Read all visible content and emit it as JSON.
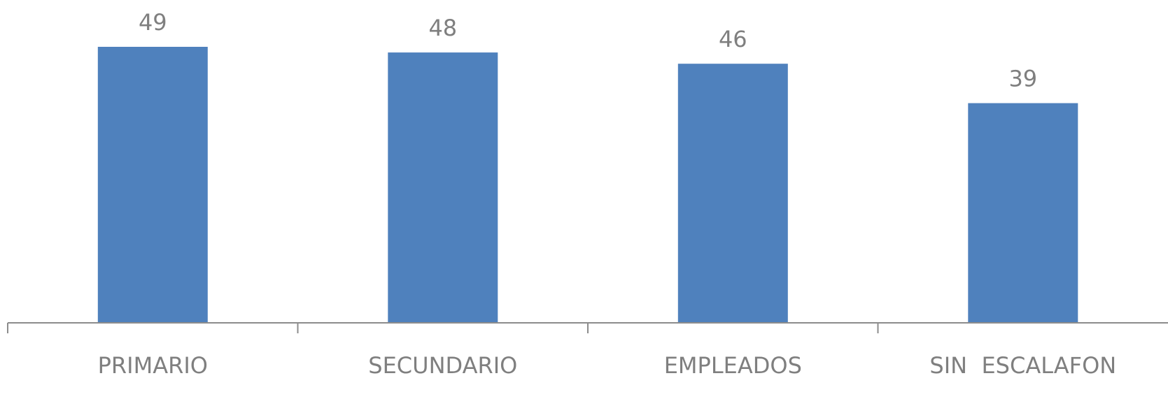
{
  "chart_data": {
    "type": "bar",
    "categories": [
      "PRIMARIO",
      "SECUNDARIO",
      "EMPLEADOS",
      "SIN  ESCALAFON"
    ],
    "values": [
      49,
      48,
      46,
      39
    ],
    "data_labels": [
      "49",
      "48",
      "46",
      "39"
    ],
    "title": "",
    "xlabel": "",
    "ylabel": "",
    "ylim": [
      0,
      49
    ],
    "grid": false,
    "legend": "none",
    "colors": {
      "bar": "#4f81bd",
      "axis": "#8c8c8c",
      "text": "#7f7f7f"
    }
  }
}
